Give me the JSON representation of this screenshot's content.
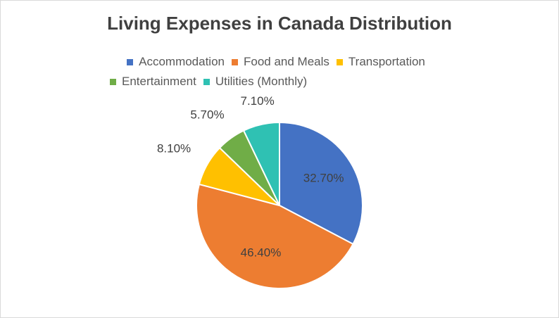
{
  "chart_data": {
    "type": "pie",
    "title": "Living Expenses in Canada Distribution",
    "categories": [
      "Accommodation",
      "Food and Meals",
      "Transportation",
      "Entertainment",
      "Utilities (Monthly)"
    ],
    "values": [
      32.7,
      46.4,
      8.1,
      5.7,
      7.1
    ],
    "labels": [
      "32.70%",
      "46.40%",
      "8.10%",
      "5.70%",
      "7.10%"
    ],
    "colors": [
      "#4472c4",
      "#ed7d31",
      "#ffc000",
      "#70ad47",
      "#2fc1b3"
    ],
    "legend_position": "top"
  }
}
